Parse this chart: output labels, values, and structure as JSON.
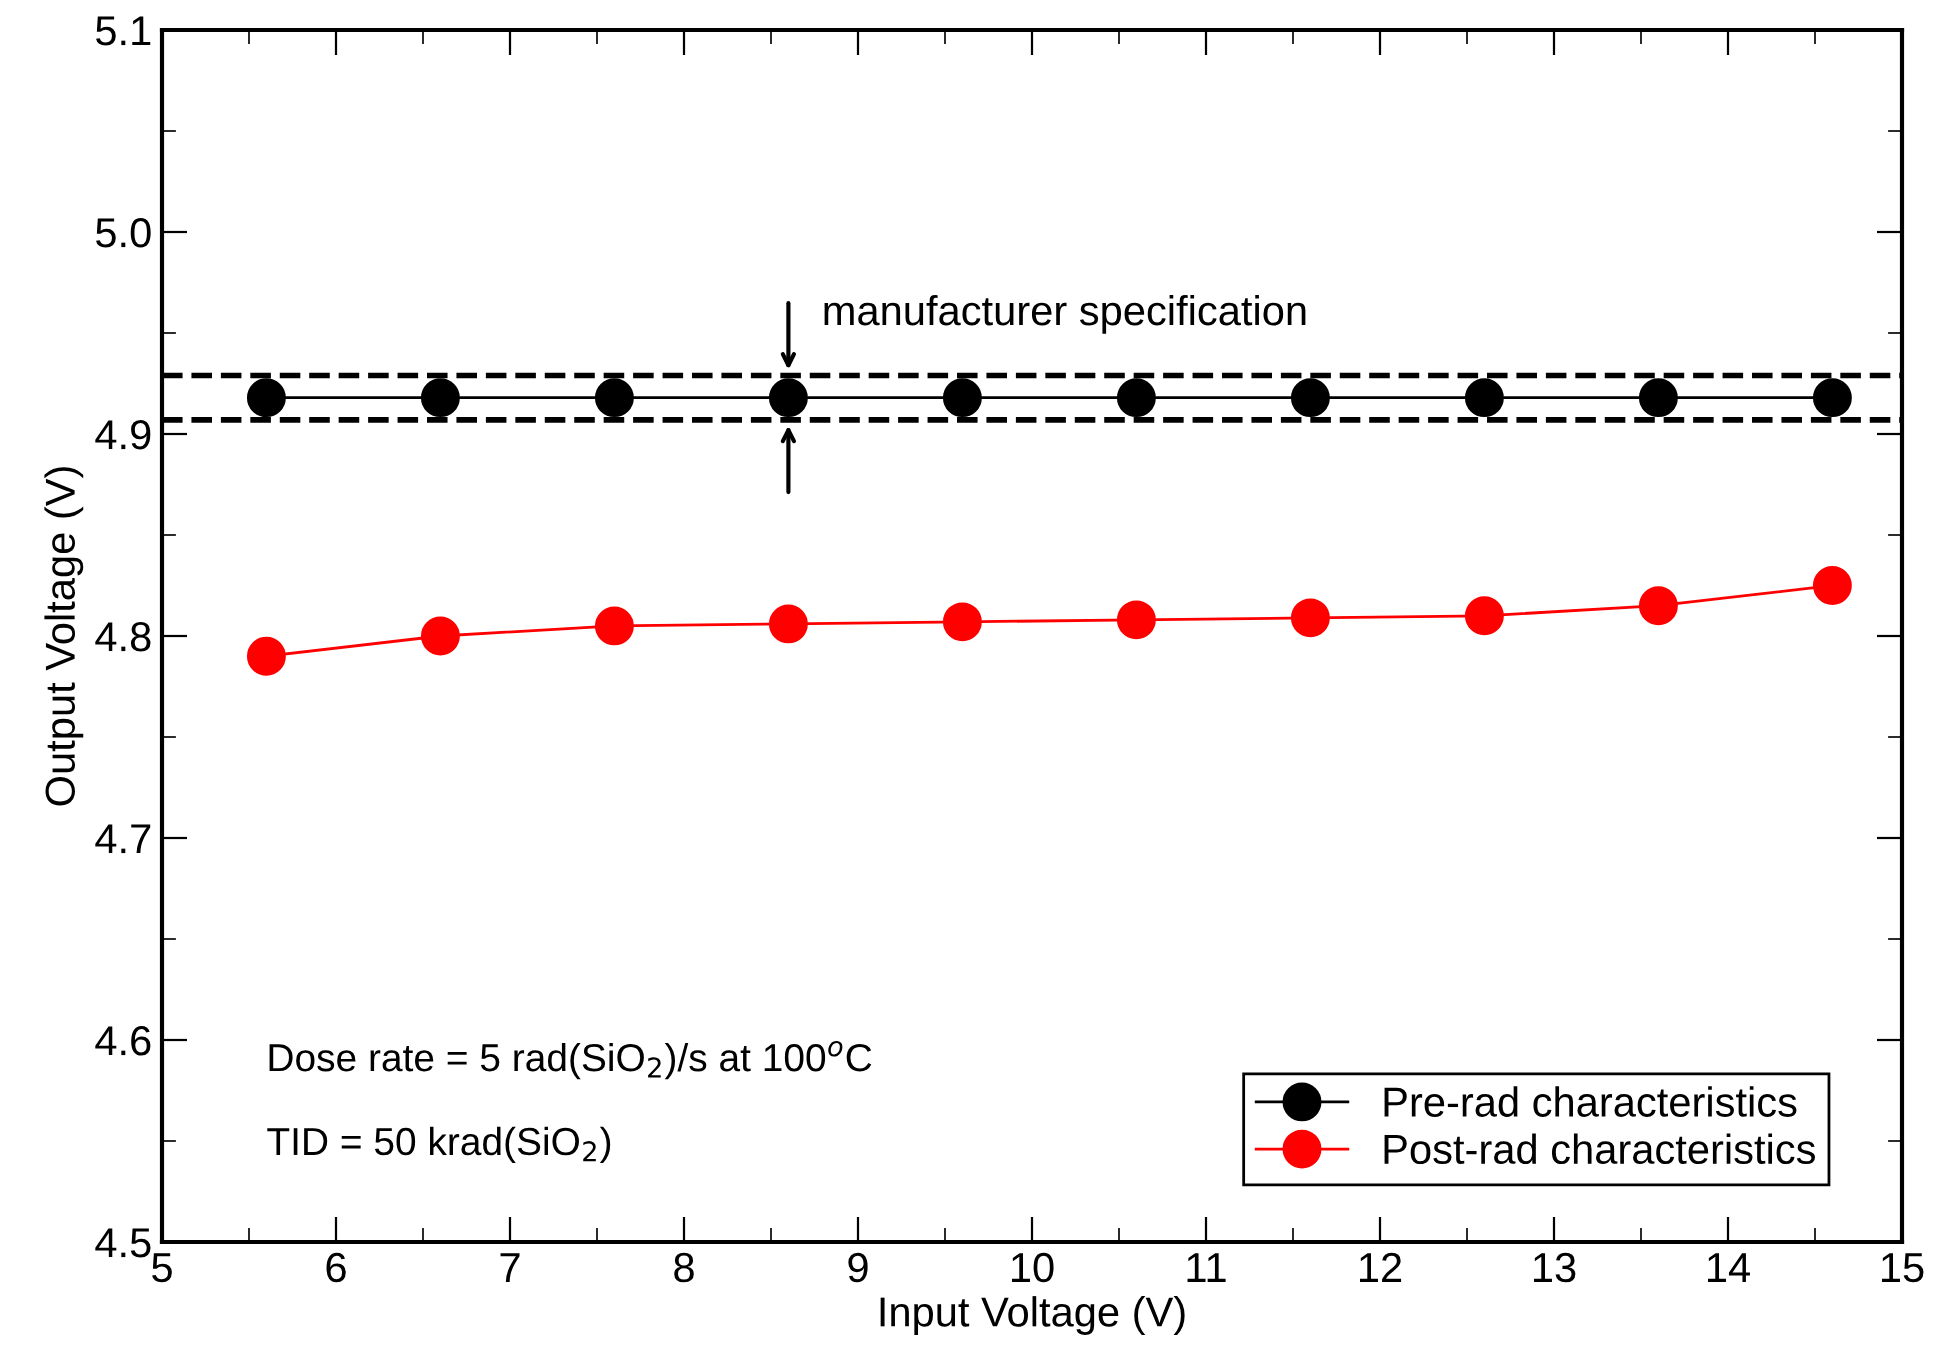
{
  "chart_data": {
    "type": "line",
    "xlabel": "Input Voltage (V)",
    "ylabel": "Output Voltage (V)",
    "x": [
      5.6,
      6.6,
      7.6,
      8.6,
      9.6,
      10.6,
      11.6,
      12.6,
      13.6,
      14.6
    ],
    "series": [
      {
        "name": "Pre-rad characteristics",
        "color": "#000000",
        "values": [
          4.918,
          4.918,
          4.918,
          4.918,
          4.918,
          4.918,
          4.918,
          4.918,
          4.918,
          4.918
        ]
      },
      {
        "name": "Post-rad characteristics",
        "color": "#ff0000",
        "values": [
          4.79,
          4.8,
          4.805,
          4.806,
          4.807,
          4.808,
          4.809,
          4.81,
          4.815,
          4.825
        ]
      }
    ],
    "marker": "circle",
    "line_style": "solid",
    "legend": "bottom right",
    "grid": false,
    "xlim": [
      5,
      15
    ],
    "xticks": [
      5,
      6,
      7,
      8,
      9,
      10,
      11,
      12,
      13,
      14,
      15
    ],
    "ylim": [
      4.5,
      5.1
    ],
    "yticks": [
      4.5,
      4.6,
      4.7,
      4.8,
      4.9,
      {
        "value": 5.0,
        "label": "5.0"
      },
      5.1
    ],
    "ref_lines": [
      {
        "axis": "y",
        "value": 4.929,
        "color": "#000000",
        "line_style": "dashed"
      },
      {
        "axis": "y",
        "value": 4.907,
        "color": "#000000",
        "line_style": "dashed"
      }
    ],
    "annotations": [
      {
        "text": "manufacturer specification",
        "x": 8.6,
        "y": 4.929
      },
      "Dose rate = 5 rad(SiO$_{2}$)/s at 100$^{o}$C",
      "TID = 50 krad(SiO$_{2}$)"
    ]
  }
}
